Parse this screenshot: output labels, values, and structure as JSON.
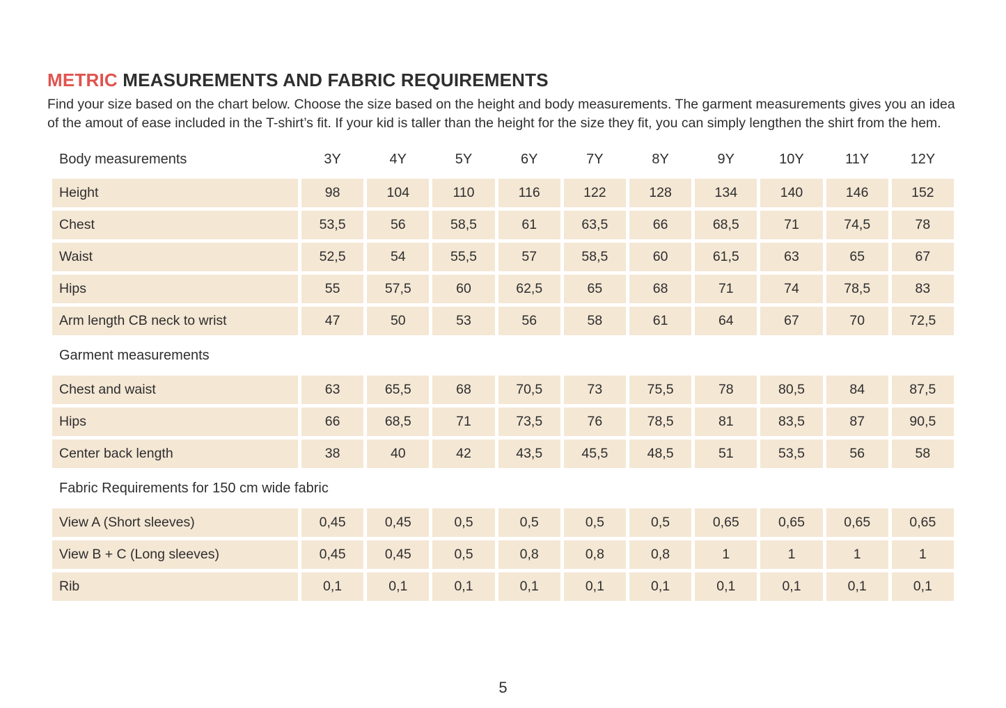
{
  "page": {
    "title_highlight": "METRIC",
    "title_rest": "MEASUREMENTS AND FABRIC REQUIREMENTS",
    "intro": "Find your size based on the chart below. Choose the size based on the height and body measurements. The garment measurements gives you an idea of the amout of ease included in the T-shirt’s fit. If your kid is taller than the height for the size they fit, you can simply lengthen the shirt from the hem.",
    "page_number": "5"
  },
  "colors": {
    "accent_red": "#e0534f",
    "cell_beige": "#f4e7d4",
    "text": "#2e2e2e"
  },
  "table": {
    "header_label": "Body measurements",
    "size_columns": [
      "3Y",
      "4Y",
      "5Y",
      "6Y",
      "7Y",
      "8Y",
      "9Y",
      "10Y",
      "11Y",
      "12Y"
    ],
    "sections": [
      {
        "heading": null,
        "rows": [
          {
            "label": "Height",
            "values": [
              "98",
              "104",
              "110",
              "116",
              "122",
              "128",
              "134",
              "140",
              "146",
              "152"
            ]
          },
          {
            "label": "Chest",
            "values": [
              "53,5",
              "56",
              "58,5",
              "61",
              "63,5",
              "66",
              "68,5",
              "71",
              "74,5",
              "78"
            ]
          },
          {
            "label": "Waist",
            "values": [
              "52,5",
              "54",
              "55,5",
              "57",
              "58,5",
              "60",
              "61,5",
              "63",
              "65",
              "67"
            ]
          },
          {
            "label": "Hips",
            "values": [
              "55",
              "57,5",
              "60",
              "62,5",
              "65",
              "68",
              "71",
              "74",
              "78,5",
              "83"
            ]
          },
          {
            "label": "Arm length CB neck to wrist",
            "values": [
              "47",
              "50",
              "53",
              "56",
              "58",
              "61",
              "64",
              "67",
              "70",
              "72,5"
            ]
          }
        ]
      },
      {
        "heading": "Garment measurements",
        "rows": [
          {
            "label": "Chest and waist",
            "values": [
              "63",
              "65,5",
              "68",
              "70,5",
              "73",
              "75,5",
              "78",
              "80,5",
              "84",
              "87,5"
            ]
          },
          {
            "label": "Hips",
            "values": [
              "66",
              "68,5",
              "71",
              "73,5",
              "76",
              "78,5",
              "81",
              "83,5",
              "87",
              "90,5"
            ]
          },
          {
            "label": "Center back length",
            "values": [
              "38",
              "40",
              "42",
              "43,5",
              "45,5",
              "48,5",
              "51",
              "53,5",
              "56",
              "58"
            ]
          }
        ]
      },
      {
        "heading": "Fabric Requirements for 150 cm wide fabric",
        "rows": [
          {
            "label": "View A (Short sleeves)",
            "values": [
              "0,45",
              "0,45",
              "0,5",
              "0,5",
              "0,5",
              "0,5",
              "0,65",
              "0,65",
              "0,65",
              "0,65"
            ]
          },
          {
            "label": "View B + C (Long sleeves)",
            "values": [
              "0,45",
              "0,45",
              "0,5",
              "0,8",
              "0,8",
              "0,8",
              "1",
              "1",
              "1",
              "1"
            ]
          },
          {
            "label": "Rib",
            "values": [
              "0,1",
              "0,1",
              "0,1",
              "0,1",
              "0,1",
              "0,1",
              "0,1",
              "0,1",
              "0,1",
              "0,1"
            ]
          }
        ]
      }
    ]
  }
}
